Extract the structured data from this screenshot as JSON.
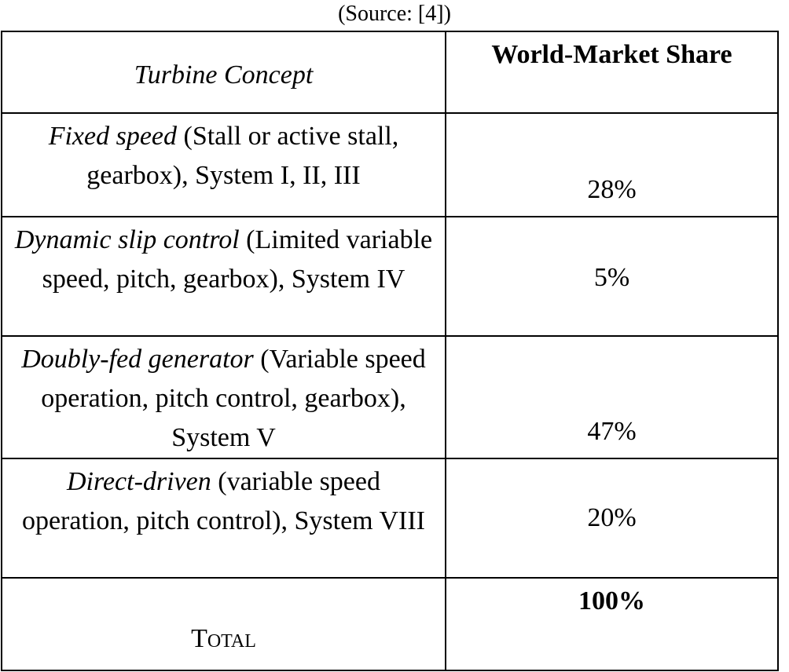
{
  "source": "(Source: [4])",
  "table": {
    "headers": {
      "concept": "Turbine Concept",
      "share": "World-Market Share"
    },
    "rows": [
      {
        "name_italic": "Fixed speed",
        "name_rest": " (Stall or active stall, gearbox), System I, II, III",
        "share": "28%"
      },
      {
        "name_italic": "Dynamic slip control",
        "name_rest": " (Limited variable speed, pitch, gearbox), System IV",
        "share": "5%"
      },
      {
        "name_italic": "Doubly-fed generator",
        "name_rest": " (Variable speed operation, pitch control, gearbox), System V",
        "share": "47%"
      },
      {
        "name_italic": "Direct-driven",
        "name_rest": " (variable speed operation, pitch control), System VIII",
        "share": "20%"
      }
    ],
    "total": {
      "label": "Total",
      "value": "100%"
    }
  }
}
